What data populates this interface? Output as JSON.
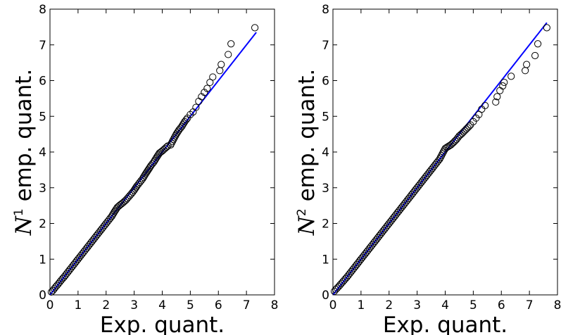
{
  "chart_data": [
    {
      "type": "scatter",
      "title": "",
      "xlabel": "Exp. quant.",
      "ylabel": {
        "var": "N",
        "sup": "1",
        "text": " emp. quant."
      },
      "xlim": [
        0,
        8
      ],
      "ylim": [
        0,
        8
      ],
      "xticks": [
        "0",
        "1",
        "2",
        "3",
        "4",
        "5",
        "6",
        "7",
        "8"
      ],
      "yticks": [
        "0",
        "1",
        "2",
        "3",
        "4",
        "5",
        "6",
        "7",
        "8"
      ],
      "grid": false,
      "reference_line": {
        "x": [
          0,
          7.35
        ],
        "y": [
          0,
          7.35
        ],
        "color": "#0000ff"
      },
      "marker": {
        "shape": "open-circle",
        "color": "#000000"
      },
      "series": [
        {
          "points": [
            [
              0.05,
              0.08
            ],
            [
              0.1,
              0.12
            ],
            [
              0.2,
              0.22
            ],
            [
              0.3,
              0.31
            ],
            [
              0.4,
              0.41
            ],
            [
              0.5,
              0.5
            ],
            [
              0.6,
              0.6
            ],
            [
              0.7,
              0.7
            ],
            [
              0.8,
              0.8
            ],
            [
              0.9,
              0.9
            ],
            [
              1.0,
              1.0
            ],
            [
              1.1,
              1.1
            ],
            [
              1.2,
              1.2
            ],
            [
              1.3,
              1.3
            ],
            [
              1.4,
              1.4
            ],
            [
              1.5,
              1.5
            ],
            [
              1.6,
              1.6
            ],
            [
              1.7,
              1.7
            ],
            [
              1.8,
              1.8
            ],
            [
              1.9,
              1.9
            ],
            [
              2.0,
              2.0
            ],
            [
              2.1,
              2.1
            ],
            [
              2.2,
              2.2
            ],
            [
              2.3,
              2.33
            ],
            [
              2.4,
              2.45
            ],
            [
              2.5,
              2.52
            ],
            [
              2.6,
              2.58
            ],
            [
              2.7,
              2.65
            ],
            [
              2.8,
              2.74
            ],
            [
              2.9,
              2.83
            ],
            [
              3.0,
              2.93
            ],
            [
              3.1,
              3.05
            ],
            [
              3.2,
              3.15
            ],
            [
              3.3,
              3.25
            ],
            [
              3.4,
              3.38
            ],
            [
              3.5,
              3.5
            ],
            [
              3.6,
              3.62
            ],
            [
              3.7,
              3.72
            ],
            [
              3.8,
              3.85
            ],
            [
              3.9,
              3.97
            ],
            [
              4.0,
              4.03
            ],
            [
              4.1,
              4.1
            ],
            [
              4.2,
              4.17
            ],
            [
              4.3,
              4.2
            ],
            [
              4.4,
              4.35
            ],
            [
              4.5,
              4.5
            ],
            [
              4.6,
              4.62
            ],
            [
              4.7,
              4.72
            ],
            [
              4.8,
              4.85
            ],
            [
              4.9,
              4.95
            ],
            [
              5.0,
              5.05
            ],
            [
              5.1,
              5.12
            ],
            [
              5.2,
              5.25
            ],
            [
              5.3,
              5.42
            ],
            [
              5.4,
              5.55
            ],
            [
              5.5,
              5.67
            ],
            [
              5.6,
              5.78
            ],
            [
              5.7,
              5.95
            ],
            [
              5.8,
              6.1
            ],
            [
              6.05,
              6.28
            ],
            [
              6.1,
              6.45
            ],
            [
              6.35,
              6.73
            ],
            [
              6.45,
              7.03
            ],
            [
              7.3,
              7.48
            ]
          ]
        }
      ]
    },
    {
      "type": "scatter",
      "title": "",
      "xlabel": "Exp. quant.",
      "ylabel": {
        "var": "N",
        "sup": "2",
        "text": " emp. quant."
      },
      "xlim": [
        0,
        8
      ],
      "ylim": [
        0,
        8
      ],
      "xticks": [
        "0",
        "1",
        "2",
        "3",
        "4",
        "5",
        "6",
        "7",
        "8"
      ],
      "yticks": [
        "0",
        "1",
        "2",
        "3",
        "4",
        "5",
        "6",
        "7",
        "8"
      ],
      "grid": false,
      "reference_line": {
        "x": [
          0,
          7.62
        ],
        "y": [
          0,
          7.62
        ],
        "color": "#0000ff"
      },
      "marker": {
        "shape": "open-circle",
        "color": "#000000"
      },
      "series": [
        {
          "points": [
            [
              0.05,
              0.1
            ],
            [
              0.1,
              0.15
            ],
            [
              0.2,
              0.23
            ],
            [
              0.3,
              0.32
            ],
            [
              0.4,
              0.41
            ],
            [
              0.5,
              0.5
            ],
            [
              0.6,
              0.6
            ],
            [
              0.7,
              0.7
            ],
            [
              0.8,
              0.8
            ],
            [
              0.9,
              0.9
            ],
            [
              1.0,
              1.0
            ],
            [
              1.1,
              1.1
            ],
            [
              1.2,
              1.2
            ],
            [
              1.3,
              1.3
            ],
            [
              1.4,
              1.4
            ],
            [
              1.5,
              1.5
            ],
            [
              1.6,
              1.6
            ],
            [
              1.7,
              1.7
            ],
            [
              1.8,
              1.8
            ],
            [
              1.9,
              1.9
            ],
            [
              2.0,
              2.0
            ],
            [
              2.1,
              2.1
            ],
            [
              2.2,
              2.2
            ],
            [
              2.3,
              2.3
            ],
            [
              2.4,
              2.4
            ],
            [
              2.5,
              2.5
            ],
            [
              2.6,
              2.6
            ],
            [
              2.7,
              2.7
            ],
            [
              2.8,
              2.8
            ],
            [
              2.9,
              2.9
            ],
            [
              3.0,
              3.0
            ],
            [
              3.1,
              3.1
            ],
            [
              3.2,
              3.2
            ],
            [
              3.3,
              3.3
            ],
            [
              3.4,
              3.4
            ],
            [
              3.5,
              3.5
            ],
            [
              3.6,
              3.6
            ],
            [
              3.7,
              3.7
            ],
            [
              3.8,
              3.8
            ],
            [
              3.9,
              3.95
            ],
            [
              4.0,
              4.1
            ],
            [
              4.1,
              4.15
            ],
            [
              4.2,
              4.2
            ],
            [
              4.3,
              4.27
            ],
            [
              4.4,
              4.35
            ],
            [
              4.5,
              4.45
            ],
            [
              4.6,
              4.52
            ],
            [
              4.7,
              4.6
            ],
            [
              4.8,
              4.68
            ],
            [
              4.9,
              4.76
            ],
            [
              5.0,
              4.85
            ],
            [
              5.1,
              4.95
            ],
            [
              5.2,
              5.05
            ],
            [
              5.3,
              5.2
            ],
            [
              5.42,
              5.3
            ],
            [
              5.8,
              5.4
            ],
            [
              5.85,
              5.55
            ],
            [
              5.95,
              5.72
            ],
            [
              6.05,
              5.85
            ],
            [
              6.1,
              5.95
            ],
            [
              6.35,
              6.12
            ],
            [
              6.85,
              6.28
            ],
            [
              6.9,
              6.45
            ],
            [
              7.2,
              6.7
            ],
            [
              7.3,
              7.03
            ],
            [
              7.62,
              7.48
            ]
          ]
        }
      ]
    }
  ]
}
